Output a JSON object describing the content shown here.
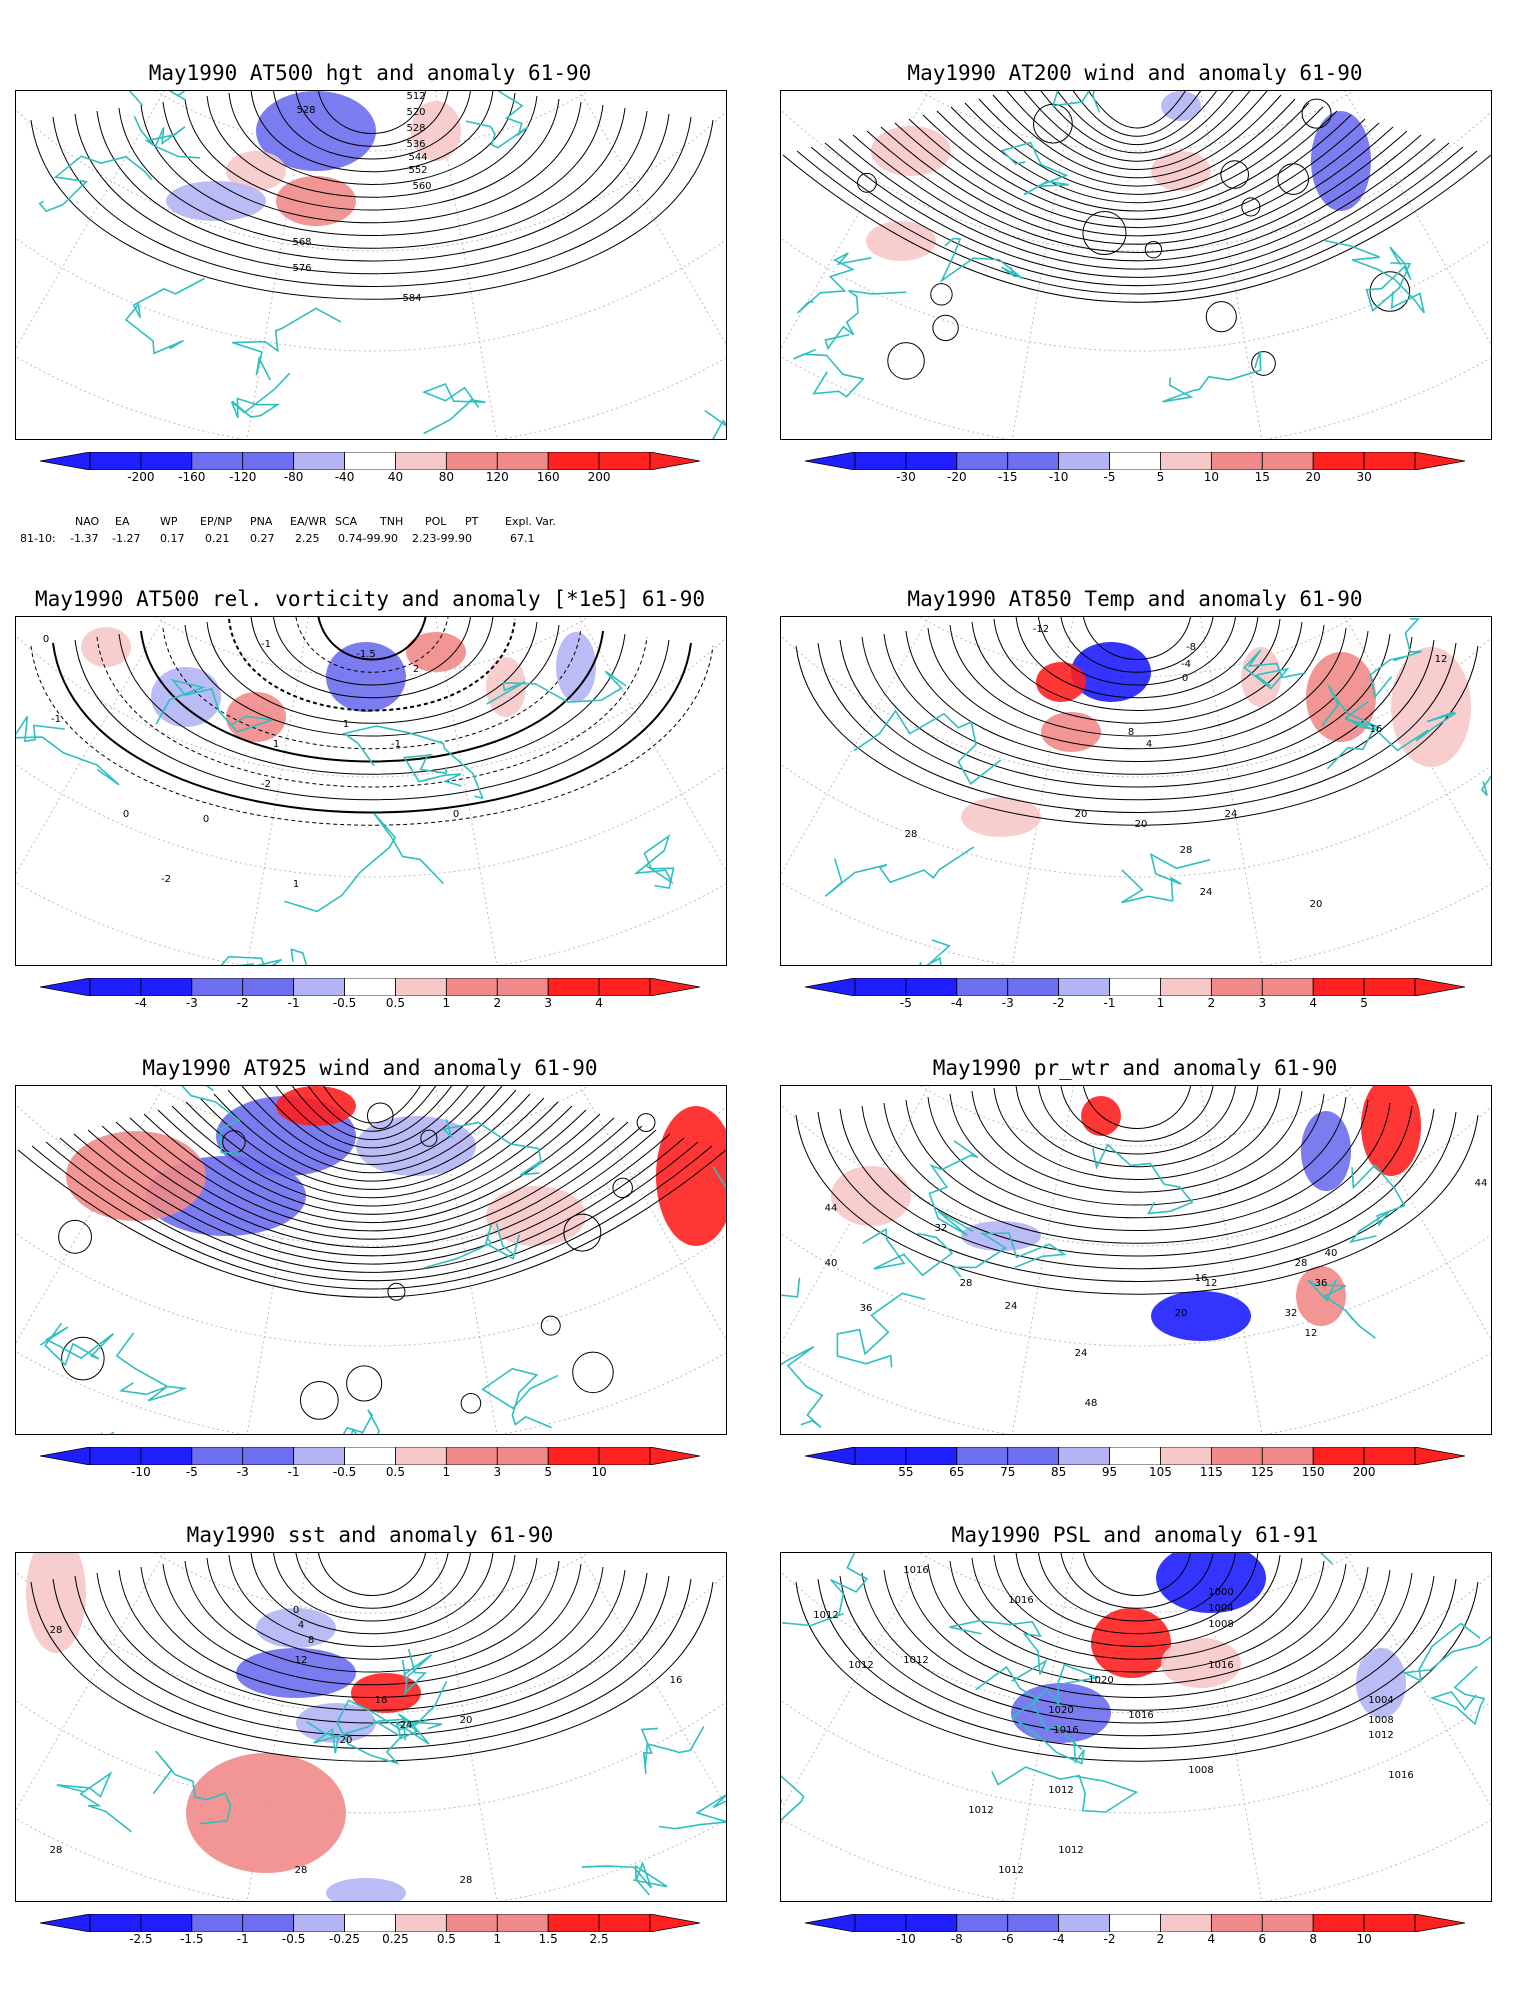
{
  "colors": {
    "coast": "#2fbfbf",
    "neg_strong": "#1e1eff",
    "neg_mid": "#6e6ef0",
    "neg_light": "#b4b4f5",
    "pos_light": "#f7c8c8",
    "pos_mid": "#f08a8a",
    "pos_strong": "#ff2020"
  },
  "panels": [
    {
      "title": "May1990 AT500 hgt and anomaly 61-90",
      "kind": "height",
      "colorbar_labels": [
        "-200",
        "-160",
        "-120",
        "-80",
        "-40",
        "40",
        "80",
        "120",
        "160",
        "200"
      ],
      "contour_labels": [
        "512",
        "520",
        "528",
        "536",
        "544",
        "552",
        "560",
        "568",
        "576",
        "584",
        "528"
      ]
    },
    {
      "title": "May1990 AT200 wind and anomaly 61-90",
      "kind": "wind",
      "colorbar_labels": [
        "-30",
        "-20",
        "-15",
        "-10",
        "-5",
        "5",
        "10",
        "15",
        "20",
        "30"
      ],
      "contour_labels": []
    },
    {
      "title": "May1990 AT500 rel. vorticity and anomaly [*1e5] 61-90",
      "kind": "vort",
      "colorbar_labels": [
        "-4",
        "-3",
        "-2",
        "-1",
        "-0.5",
        "0.5",
        "1",
        "2",
        "3",
        "4"
      ],
      "contour_labels": [
        "0",
        "-1",
        "1",
        "0",
        "-2",
        "2",
        "-1",
        "0",
        "1",
        "-1.5",
        "0",
        "-1",
        "1",
        "-2"
      ]
    },
    {
      "title": "May1990 AT850 Temp and anomaly 61-90",
      "kind": "temp",
      "colorbar_labels": [
        "-5",
        "-4",
        "-3",
        "-2",
        "-1",
        "1",
        "2",
        "3",
        "4",
        "5"
      ],
      "contour_labels": [
        "-12",
        "-8",
        "-4",
        "0",
        "4",
        "8",
        "12",
        "16",
        "20",
        "24",
        "28",
        "28",
        "20",
        "24",
        "20"
      ]
    },
    {
      "title": "May1990 AT925 wind and anomaly 61-90",
      "kind": "wind925",
      "colorbar_labels": [
        "-10",
        "-5",
        "-3",
        "-1",
        "-0.5",
        "0.5",
        "1",
        "3",
        "5",
        "10"
      ],
      "contour_labels": []
    },
    {
      "title": "May1990 pr_wtr and anomaly 61-90",
      "kind": "prwtr",
      "colorbar_labels": [
        "55",
        "65",
        "75",
        "85",
        "95",
        "105",
        "115",
        "125",
        "150",
        "200"
      ],
      "contour_labels": [
        "44",
        "40",
        "36",
        "32",
        "28",
        "24",
        "20",
        "16",
        "12",
        "12",
        "24",
        "28",
        "32",
        "36",
        "40",
        "44",
        "48"
      ]
    },
    {
      "title": "May1990 sst and anomaly 61-90",
      "kind": "sst",
      "colorbar_labels": [
        "-2.5",
        "-1.5",
        "-1",
        "-0.5",
        "-0.25",
        "0.25",
        "0.5",
        "1",
        "1.5",
        "2.5"
      ],
      "contour_labels": [
        "28",
        "0",
        "4",
        "8",
        "12",
        "16",
        "20",
        "24",
        "28",
        "28",
        "16",
        "20",
        "28"
      ]
    },
    {
      "title": "May1990 PSL and anomaly 61-91",
      "kind": "psl",
      "colorbar_labels": [
        "-10",
        "-8",
        "-6",
        "-4",
        "-2",
        "2",
        "4",
        "6",
        "8",
        "10"
      ],
      "contour_labels": [
        "1012",
        "1016",
        "1012",
        "1016",
        "1000",
        "1004",
        "1008",
        "1020",
        "1016",
        "1012",
        "1016",
        "1020",
        "1012",
        "1016",
        "1012",
        "1004",
        "1008",
        "1012",
        "1016",
        "1008",
        "1012",
        "1012"
      ]
    }
  ],
  "index_table": {
    "headers": [
      "NAO",
      "EA",
      "WP",
      "EP/NP",
      "PNA",
      "EA/WR",
      "SCA",
      "TNH",
      "POL",
      "PT",
      "Expl. Var."
    ],
    "row_label": "81-10:",
    "values": [
      "-1.37",
      "-1.27",
      "0.17",
      "0.21",
      "0.27",
      "2.25",
      "0.74-99.90",
      "2.23-99.90",
      "67.1"
    ]
  }
}
